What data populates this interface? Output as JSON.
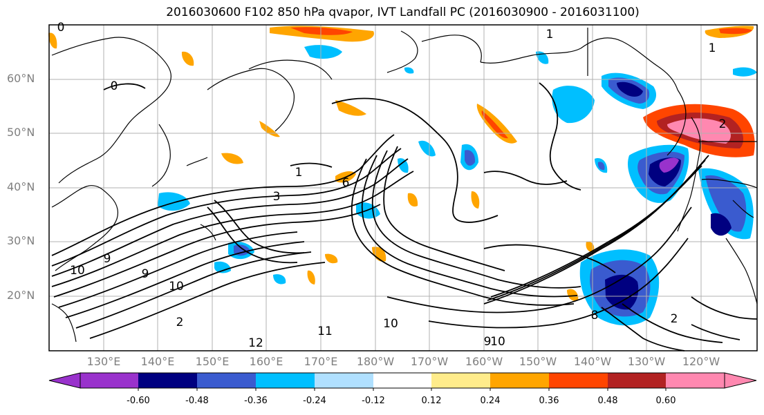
{
  "title": "2016030600 F102 850 hPa qvapor, IVT Landfall PC (2016030900 - 2016031100)",
  "lat_labels": [
    "60°N",
    "50°N",
    "40°N",
    "30°N",
    "20°N"
  ],
  "lon_labels": [
    "130°E",
    "140°E",
    "150°E",
    "160°E",
    "170°E",
    "180°W",
    "170°W",
    "160°W",
    "150°W",
    "140°W",
    "130°W",
    "120°W"
  ],
  "contour_labels": [
    "0",
    "1",
    "1",
    "0",
    "2",
    "1",
    "3",
    "6",
    "9",
    "10",
    "9",
    "10",
    "2",
    "10",
    "11",
    "12",
    "9",
    "10",
    "2",
    "8"
  ],
  "colorbar": {
    "ticks": [
      "-0.60",
      "-0.48",
      "-0.36",
      "-0.24",
      "-0.12",
      "0.12",
      "0.24",
      "0.36",
      "0.48",
      "0.60"
    ],
    "colors": [
      "#9932cc",
      "#000080",
      "#3a5bcf",
      "#00bfff",
      "#b0e0ff",
      "#ffffff",
      "#ffec8b",
      "#ffa500",
      "#ff4500",
      "#b22222",
      "#ff88b0"
    ]
  }
}
